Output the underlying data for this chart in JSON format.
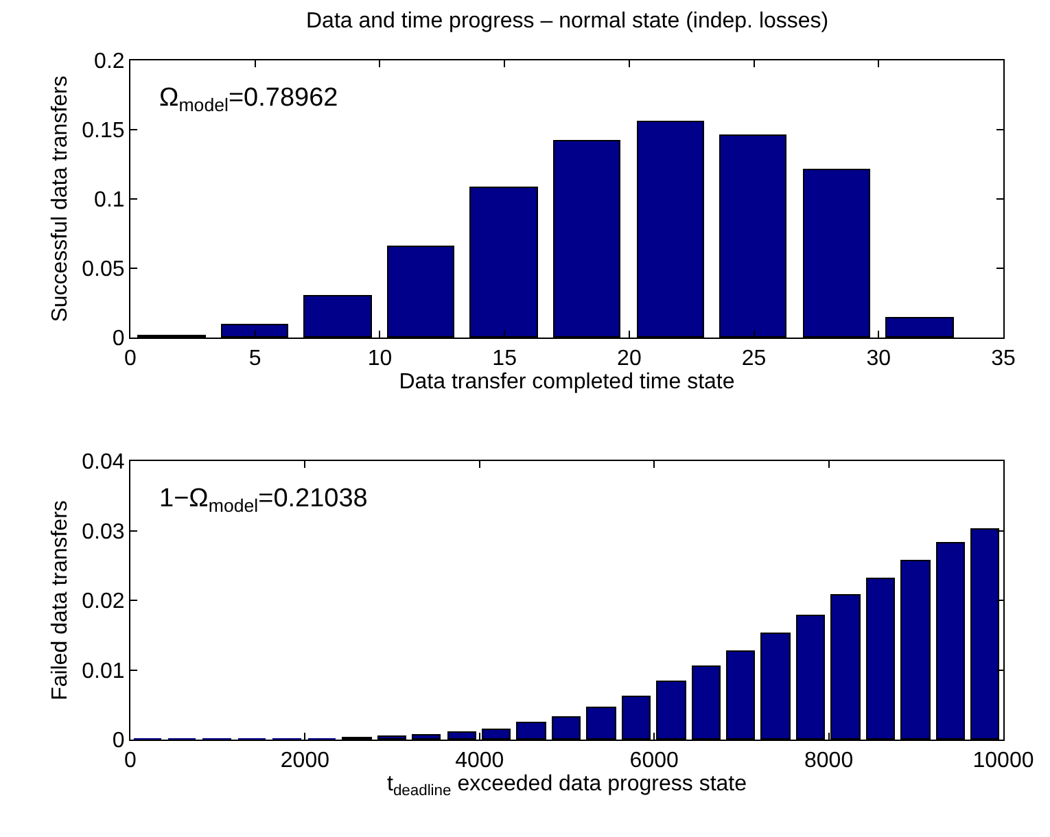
{
  "chart_data": [
    {
      "type": "bar",
      "title": "Data and time progress – normal state (indep. losses)",
      "xlabel": "Data transfer completed time state",
      "ylabel": "Successful data transfers",
      "annotations": [
        "Ω$_{model}$=0.78962"
      ],
      "x": [
        1.67,
        5,
        8.33,
        11.67,
        15,
        18.33,
        21.67,
        25,
        28.33,
        31.67
      ],
      "series": [
        {
          "color": "#00008b",
          "values": [
            0.001,
            0.009,
            0.03,
            0.065,
            0.108,
            0.142,
            0.155,
            0.146,
            0.121,
            0.014
          ]
        }
      ],
      "xlim": [
        0,
        35
      ],
      "xticks": [
        0,
        5,
        10,
        15,
        20,
        25,
        30,
        35
      ],
      "ylim": [
        0,
        0.2
      ],
      "yticks": [
        0,
        0.05,
        0.1,
        0.15,
        0.2
      ]
    },
    {
      "type": "bar",
      "xlabel": "t$_{deadline}$ exceeded data progress state",
      "ylabel": "Failed data transfers",
      "annotations": [
        "1−Ω$_{model}$=0.21038"
      ],
      "x": [
        200,
        600,
        1000,
        1400,
        1800,
        2200,
        2600,
        3000,
        3400,
        3800,
        4200,
        4600,
        5000,
        5400,
        5800,
        6200,
        6600,
        7000,
        7400,
        7800,
        8200,
        8600,
        9000,
        9400,
        9800
      ],
      "series": [
        {
          "color": "#00008b",
          "values": [
            0,
            0,
            0,
            0,
            0,
            0,
            0.0001,
            0.0003,
            0.0005,
            0.0009,
            0.0014,
            0.0023,
            0.0032,
            0.0045,
            0.0062,
            0.0082,
            0.0104,
            0.0127,
            0.0152,
            0.0178,
            0.0206,
            0.0231,
            0.0257,
            0.0281,
            0.0301
          ]
        }
      ],
      "xlim": [
        0,
        10000
      ],
      "xticks": [
        0,
        2000,
        4000,
        6000,
        8000,
        10000
      ],
      "ylim": [
        0,
        0.04
      ],
      "yticks": [
        0,
        0.01,
        0.02,
        0.03,
        0.04
      ]
    }
  ]
}
